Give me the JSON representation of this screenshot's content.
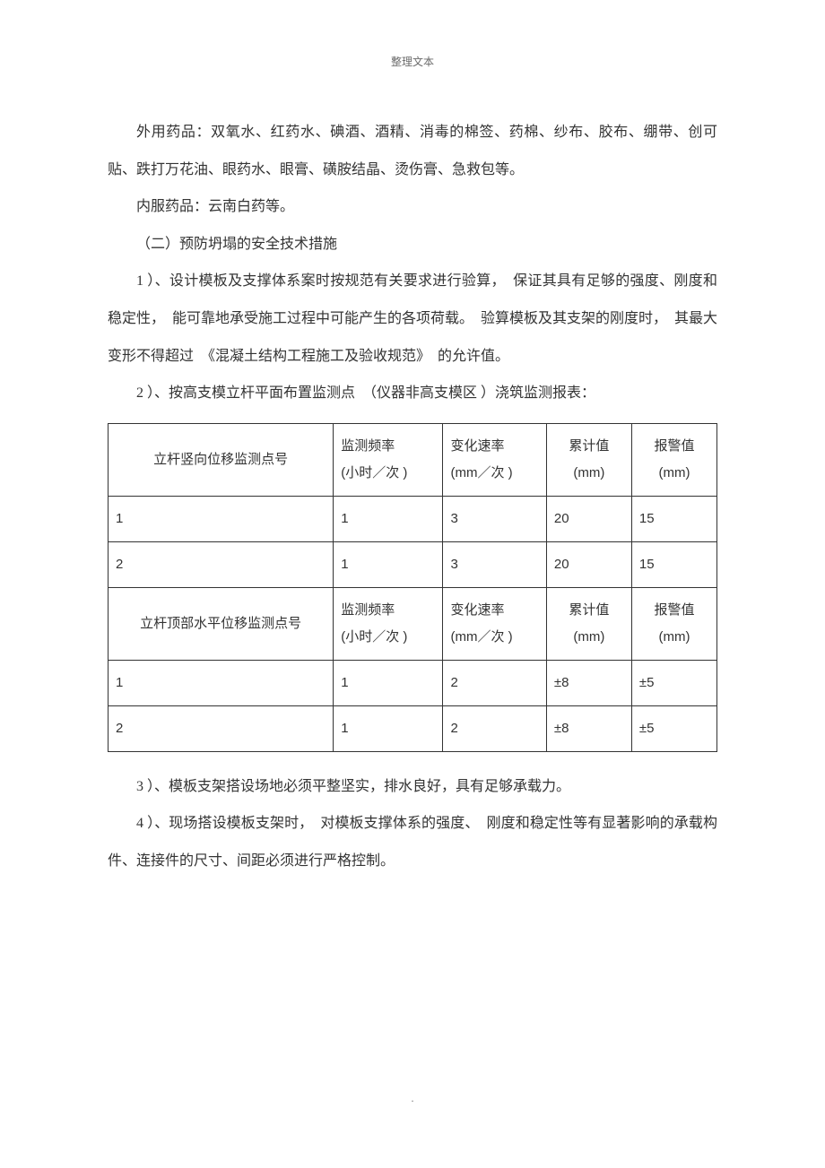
{
  "header": {
    "label": "整理文本"
  },
  "paragraphs": {
    "p1": "外用药品：双氧水、红药水、碘酒、酒精、消毒的棉签、药棉、纱布、胶布、绷带、创可贴、跌打万花油、眼药水、眼膏、磺胺结晶、烫伤膏、急救包等。",
    "p2": "内服药品：云南白药等。",
    "p3": "（二）预防坍塌的安全技术措施",
    "p4": "1 ）、设计模板及支撑体系案时按规范有关要求进行验算，　保证其具有足够的强度、刚度和稳定性，　能可靠地承受施工过程中可能产生的各项荷载。　验算模板及其支架的刚度时，　其最大变形不得超过　《混凝土结构工程施工及验收规范》　的允许值。",
    "p5": "2 ）、按高支模立杆平面布置监测点　（仪器非高支模区 ）浇筑监测报表：",
    "p6": "3 ）、模板支架搭设场地必须平整坚实，排水良好，具有足够承载力。",
    "p7": "4 ）、现场搭设模板支架时，　对模板支撑体系的强度、　刚度和稳定性等有显著影响的承载构件、连接件的尺寸、间距必须进行严格控制。"
  },
  "table": {
    "header1": {
      "c0": "立杆竖向位移监测点号",
      "c1a": "监测频率",
      "c1b": "(小时／次 )",
      "c2a": "变化速率",
      "c2b": "(mm／次 )",
      "c3a": "累计值",
      "c3b": "(mm)",
      "c4a": "报警值",
      "c4b": "(mm)"
    },
    "rows1": [
      {
        "c0": "1",
        "c1": "1",
        "c2": "3",
        "c3": "20",
        "c4": "15"
      },
      {
        "c0": "2",
        "c1": "1",
        "c2": "3",
        "c3": "20",
        "c4": "15"
      }
    ],
    "header2": {
      "c0": "立杆顶部水平位移监测点号",
      "c1a": "监测频率",
      "c1b": "(小时／次 )",
      "c2a": "变化速率",
      "c2b": "(mm／次 )",
      "c3a": "累计值",
      "c3b": "(mm)",
      "c4a": "报警值",
      "c4b": "(mm)"
    },
    "rows2": [
      {
        "c0": "1",
        "c1": "1",
        "c2": "2",
        "c3": "±8",
        "c4": "±5"
      },
      {
        "c0": "2",
        "c1": "1",
        "c2": "2",
        "c3": "±8",
        "c4": "±5"
      }
    ],
    "col_widths": [
      "37%",
      "18%",
      "17%",
      "14%",
      "14%"
    ]
  },
  "footer": {
    "dot": "."
  }
}
